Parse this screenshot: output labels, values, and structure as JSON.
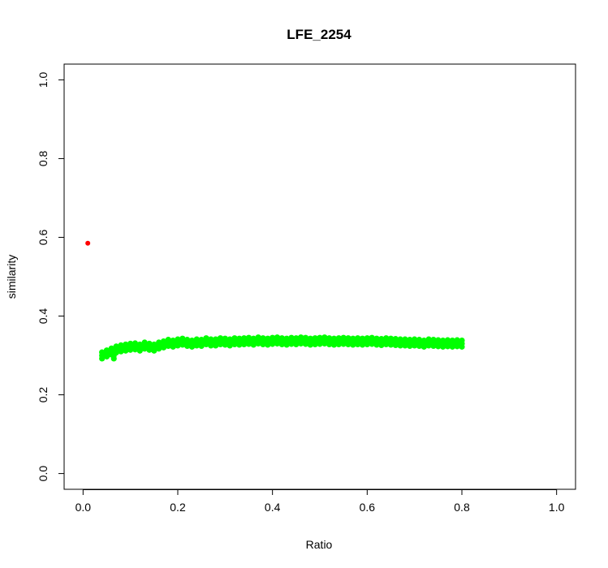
{
  "chart_data": {
    "type": "scatter",
    "title": "LFE_2254",
    "xlabel": "Ratio",
    "ylabel": "similarity",
    "xlim": [
      -0.04,
      1.04
    ],
    "ylim": [
      -0.04,
      1.04
    ],
    "xticks": [
      0.0,
      0.2,
      0.4,
      0.6,
      0.8,
      1.0
    ],
    "yticks": [
      0.0,
      0.2,
      0.4,
      0.6,
      0.8,
      1.0
    ],
    "xtick_labels": [
      "0.0",
      "0.2",
      "0.4",
      "0.6",
      "0.8",
      "1.0"
    ],
    "ytick_labels": [
      "0.0",
      "0.2",
      "0.4",
      "0.6",
      "0.8",
      "1.0"
    ],
    "grid": false,
    "series": [
      {
        "color": "#ff0000",
        "points": [
          [
            0.01,
            0.585
          ]
        ]
      },
      {
        "color": "#00ff00",
        "points": [
          [
            0.04,
            0.3
          ],
          [
            0.05,
            0.305
          ],
          [
            0.06,
            0.31
          ],
          [
            0.065,
            0.3
          ],
          [
            0.07,
            0.315
          ],
          [
            0.08,
            0.318
          ],
          [
            0.09,
            0.32
          ],
          [
            0.1,
            0.322
          ],
          [
            0.11,
            0.323
          ],
          [
            0.12,
            0.32
          ],
          [
            0.13,
            0.325
          ],
          [
            0.14,
            0.322
          ],
          [
            0.15,
            0.32
          ],
          [
            0.16,
            0.325
          ],
          [
            0.17,
            0.328
          ],
          [
            0.18,
            0.332
          ],
          [
            0.19,
            0.33
          ],
          [
            0.2,
            0.333
          ],
          [
            0.21,
            0.335
          ],
          [
            0.22,
            0.332
          ],
          [
            0.23,
            0.33
          ],
          [
            0.24,
            0.333
          ],
          [
            0.25,
            0.332
          ],
          [
            0.26,
            0.336
          ],
          [
            0.27,
            0.333
          ],
          [
            0.28,
            0.333
          ],
          [
            0.29,
            0.336
          ],
          [
            0.3,
            0.335
          ],
          [
            0.31,
            0.333
          ],
          [
            0.32,
            0.336
          ],
          [
            0.33,
            0.335
          ],
          [
            0.34,
            0.336
          ],
          [
            0.35,
            0.337
          ],
          [
            0.36,
            0.335
          ],
          [
            0.37,
            0.338
          ],
          [
            0.38,
            0.336
          ],
          [
            0.39,
            0.335
          ],
          [
            0.4,
            0.337
          ],
          [
            0.41,
            0.338
          ],
          [
            0.42,
            0.336
          ],
          [
            0.43,
            0.335
          ],
          [
            0.44,
            0.337
          ],
          [
            0.45,
            0.336
          ],
          [
            0.46,
            0.338
          ],
          [
            0.47,
            0.337
          ],
          [
            0.48,
            0.335
          ],
          [
            0.49,
            0.336
          ],
          [
            0.5,
            0.337
          ],
          [
            0.51,
            0.338
          ],
          [
            0.52,
            0.336
          ],
          [
            0.53,
            0.335
          ],
          [
            0.54,
            0.336
          ],
          [
            0.55,
            0.337
          ],
          [
            0.56,
            0.336
          ],
          [
            0.57,
            0.335
          ],
          [
            0.58,
            0.336
          ],
          [
            0.59,
            0.335
          ],
          [
            0.6,
            0.336
          ],
          [
            0.61,
            0.337
          ],
          [
            0.62,
            0.335
          ],
          [
            0.63,
            0.334
          ],
          [
            0.64,
            0.336
          ],
          [
            0.65,
            0.335
          ],
          [
            0.66,
            0.334
          ],
          [
            0.67,
            0.333
          ],
          [
            0.68,
            0.333
          ],
          [
            0.69,
            0.332
          ],
          [
            0.7,
            0.333
          ],
          [
            0.71,
            0.332
          ],
          [
            0.72,
            0.33
          ],
          [
            0.73,
            0.333
          ],
          [
            0.74,
            0.332
          ],
          [
            0.75,
            0.331
          ],
          [
            0.76,
            0.33
          ],
          [
            0.77,
            0.331
          ],
          [
            0.78,
            0.33
          ],
          [
            0.79,
            0.331
          ],
          [
            0.8,
            0.33
          ]
        ]
      }
    ]
  }
}
